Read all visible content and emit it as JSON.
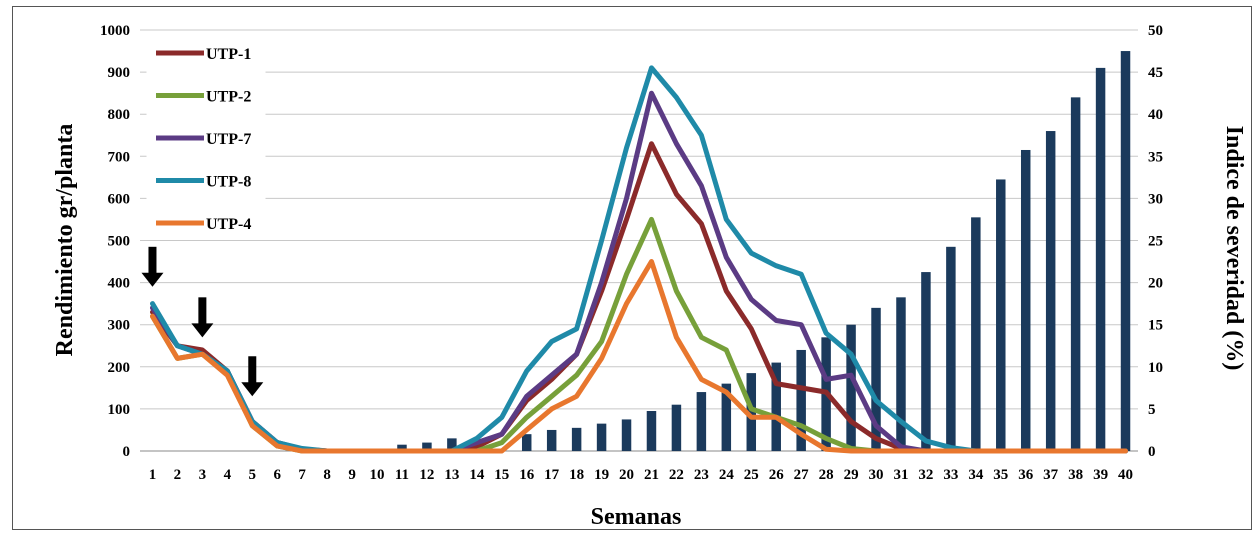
{
  "chart_data": {
    "type": "bar+line",
    "xlabel": "Semanas",
    "ylabel_left": "Rendimiento gr/planta",
    "ylabel_right": "Indice de severidad (%)",
    "ylim_left": [
      0,
      1000
    ],
    "ylim_right": [
      0,
      50
    ],
    "yticks_left": [
      "0",
      "100",
      "200",
      "300",
      "400",
      "500",
      "600",
      "700",
      "800",
      "900",
      "1000"
    ],
    "yticks_right": [
      "0",
      "5",
      "10",
      "15",
      "20",
      "25",
      "30",
      "35",
      "40",
      "45",
      "50"
    ],
    "categories": [
      "1",
      "2",
      "3",
      "4",
      "5",
      "6",
      "7",
      "8",
      "9",
      "10",
      "11",
      "12",
      "13",
      "14",
      "15",
      "16",
      "17",
      "18",
      "19",
      "20",
      "21",
      "22",
      "23",
      "24",
      "25",
      "26",
      "27",
      "28",
      "29",
      "30",
      "31",
      "32",
      "33",
      "34",
      "35",
      "36",
      "37",
      "38",
      "39",
      "40"
    ],
    "grid": "horizontal",
    "legend_position": "top-left",
    "bar_series": {
      "axis": "left",
      "color": "#1b3a5c",
      "values": [
        0,
        0,
        0,
        0,
        0,
        0,
        0,
        0,
        0,
        0,
        15,
        20,
        30,
        0,
        0,
        40,
        50,
        55,
        65,
        75,
        95,
        110,
        140,
        160,
        185,
        210,
        240,
        270,
        300,
        340,
        365,
        425,
        485,
        555,
        645,
        715,
        760,
        840,
        910,
        950
      ]
    },
    "series": [
      {
        "name": "UTP-1",
        "axis": "right",
        "color": "#8b2a2a",
        "values": [
          16.5,
          12.5,
          12,
          9.5,
          3.5,
          1,
          0.2,
          0,
          0,
          0,
          0,
          0,
          0,
          0.5,
          2,
          6,
          8.5,
          11.5,
          19,
          27.5,
          36.5,
          30.5,
          27,
          19,
          14.5,
          8,
          7.5,
          7,
          3.5,
          1.5,
          0.3,
          0,
          0,
          0,
          0,
          0,
          0,
          0,
          0,
          0
        ]
      },
      {
        "name": "UTP-2",
        "axis": "right",
        "color": "#77a03a",
        "values": [
          16,
          11,
          11.5,
          9.5,
          3,
          0.6,
          0,
          0,
          0,
          0,
          0,
          0,
          0,
          0,
          1,
          4,
          6.5,
          9,
          13,
          21,
          27.5,
          19,
          13.5,
          12,
          5,
          4,
          3,
          1.5,
          0.3,
          0,
          0,
          0,
          0,
          0,
          0,
          0,
          0,
          0,
          0,
          0
        ]
      },
      {
        "name": "UTP-7",
        "axis": "right",
        "color": "#5b3b84",
        "values": [
          17,
          12.5,
          11.5,
          9.5,
          3.5,
          1,
          0.2,
          0,
          0,
          0,
          0,
          0,
          0,
          1,
          2,
          6.5,
          9,
          11.5,
          20,
          30,
          42.5,
          36.5,
          31.5,
          23,
          18,
          15.5,
          15,
          8.5,
          9,
          3,
          0.5,
          0,
          0,
          0,
          0,
          0,
          0,
          0,
          0,
          0
        ]
      },
      {
        "name": "UTP-8",
        "axis": "right",
        "color": "#1f8aa8",
        "values": [
          17.5,
          12.5,
          11.5,
          9.5,
          3.5,
          1,
          0.3,
          0,
          0,
          0,
          0,
          0,
          0,
          1.5,
          4,
          9.5,
          13,
          14.5,
          25,
          36,
          45.5,
          42,
          37.5,
          27.5,
          23.5,
          22,
          21,
          14,
          11.5,
          6,
          3.5,
          1.2,
          0.4,
          0,
          0,
          0,
          0,
          0,
          0,
          0
        ]
      },
      {
        "name": "UTP-4",
        "axis": "right",
        "color": "#e8772e",
        "values": [
          16,
          11,
          11.5,
          9,
          3,
          0.6,
          0,
          0,
          0,
          0,
          0,
          0,
          0,
          0,
          0,
          2.5,
          5,
          6.5,
          11,
          17.5,
          22.5,
          13.5,
          8.5,
          7,
          4,
          4,
          2,
          0.2,
          0,
          0,
          0,
          0,
          0,
          0,
          0,
          0,
          0,
          0,
          0,
          0
        ]
      }
    ],
    "annotations": [
      {
        "type": "arrow-down",
        "x": "1",
        "y_right": 19.5
      },
      {
        "type": "arrow-down",
        "x": "3",
        "y_right": 13.5
      },
      {
        "type": "arrow-down",
        "x": "5",
        "y_right": 6.5
      }
    ]
  }
}
